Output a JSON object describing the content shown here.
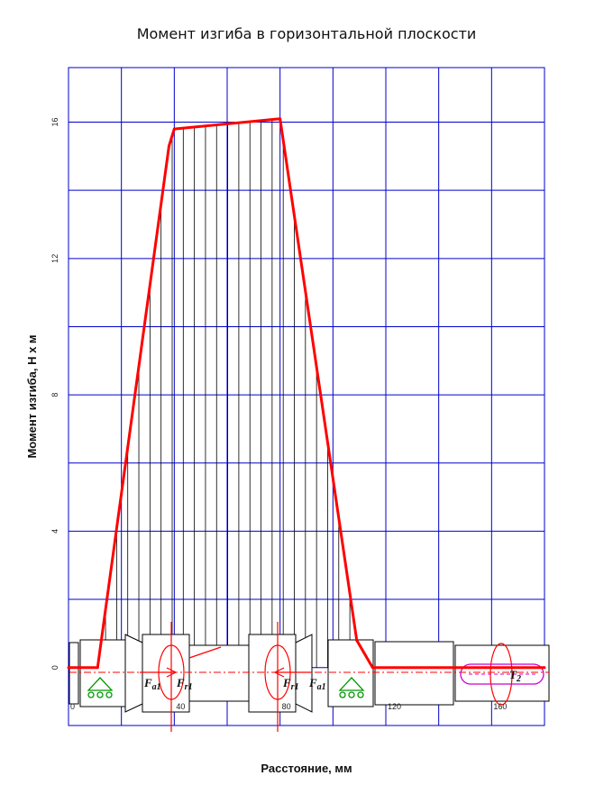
{
  "chart_data": {
    "type": "line",
    "title": "Момент изгиба в горизонтальной плоскости",
    "xlabel": "Расстояние, мм",
    "ylabel": "Момент изгиба, Н х м",
    "xlim": [
      0,
      180
    ],
    "ylim": [
      -1.7,
      17.6
    ],
    "yticks": [
      0,
      4,
      8,
      12,
      16
    ],
    "xticks": [
      0,
      40,
      80,
      120,
      160
    ],
    "grid": true,
    "series": [
      {
        "color": "#ff0000",
        "x": [
          0,
          11,
          38,
          40,
          80,
          109,
          115,
          180
        ],
        "y": [
          0,
          0,
          15.3,
          15.8,
          16.1,
          0.8,
          0,
          0
        ]
      }
    ],
    "annotations": {
      "fa1_left": "F",
      "fa1_left_sub": "a1",
      "fr1_left": "F",
      "fr1_left_sub": "r1",
      "fr1_right": "F",
      "fr1_right_sub": "r1",
      "fa1_right": "F",
      "fa1_right_sub": "a1",
      "t2": "T",
      "t2_sub": "2"
    },
    "colors": {
      "grid": "#0000cc",
      "curve": "#ff0000",
      "support": "#009900",
      "torque": "#cc00cc",
      "shaft": "#000000"
    }
  }
}
